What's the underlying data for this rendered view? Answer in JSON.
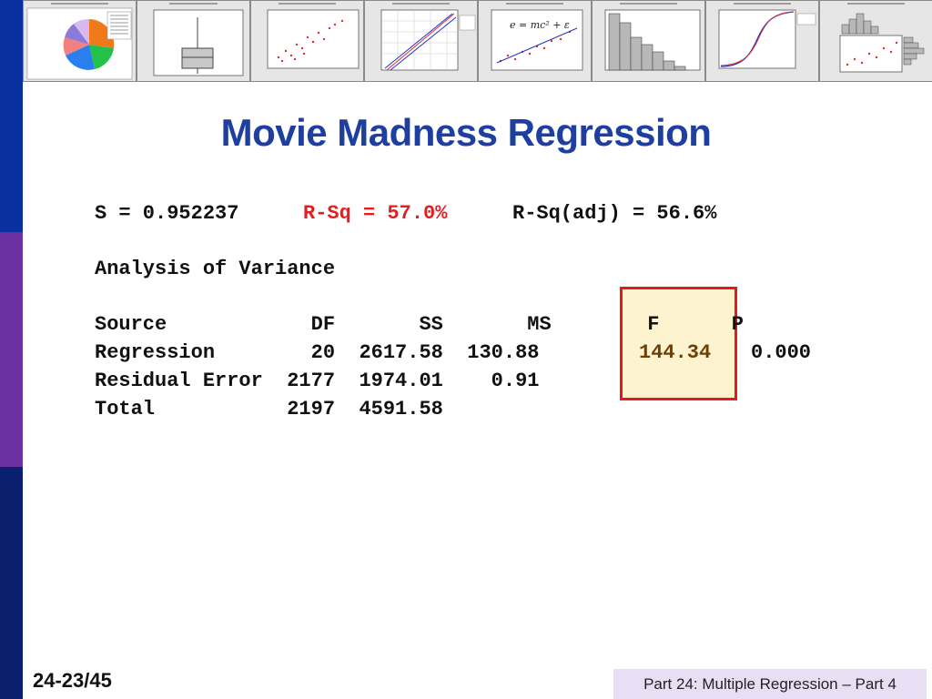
{
  "slide": {
    "title": "Movie Madness Regression",
    "slide_number": "24-23/45",
    "footer": "Part 24: Multiple Regression – Part 4"
  },
  "thumbnails": {
    "formula_label": "e = mc² + ε"
  },
  "stats": {
    "s_text": "S = 0.952237",
    "rsq_text": "R-Sq = 57.0%",
    "rsq_adj_text": "R-Sq(adj) = 56.6%"
  },
  "anova": {
    "heading": "Analysis of Variance",
    "header_row": "Source            DF       SS       MS        F      P",
    "rows": [
      {
        "lead": "Regression        20  2617.58  130.88",
        "f": "144.34",
        "p": "0.000"
      },
      {
        "lead": "Residual Error  2177  1974.01    0.91",
        "f": "",
        "p": ""
      },
      {
        "lead": "Total           2197  4591.58",
        "f": "",
        "p": ""
      }
    ]
  },
  "colors": {
    "title_blue": "#1f3fa0",
    "rsq_red": "#e02020",
    "highlight_border": "#e41b1b",
    "highlight_fill": "#fdf3cf",
    "footer_bg": "#e9dff4"
  }
}
